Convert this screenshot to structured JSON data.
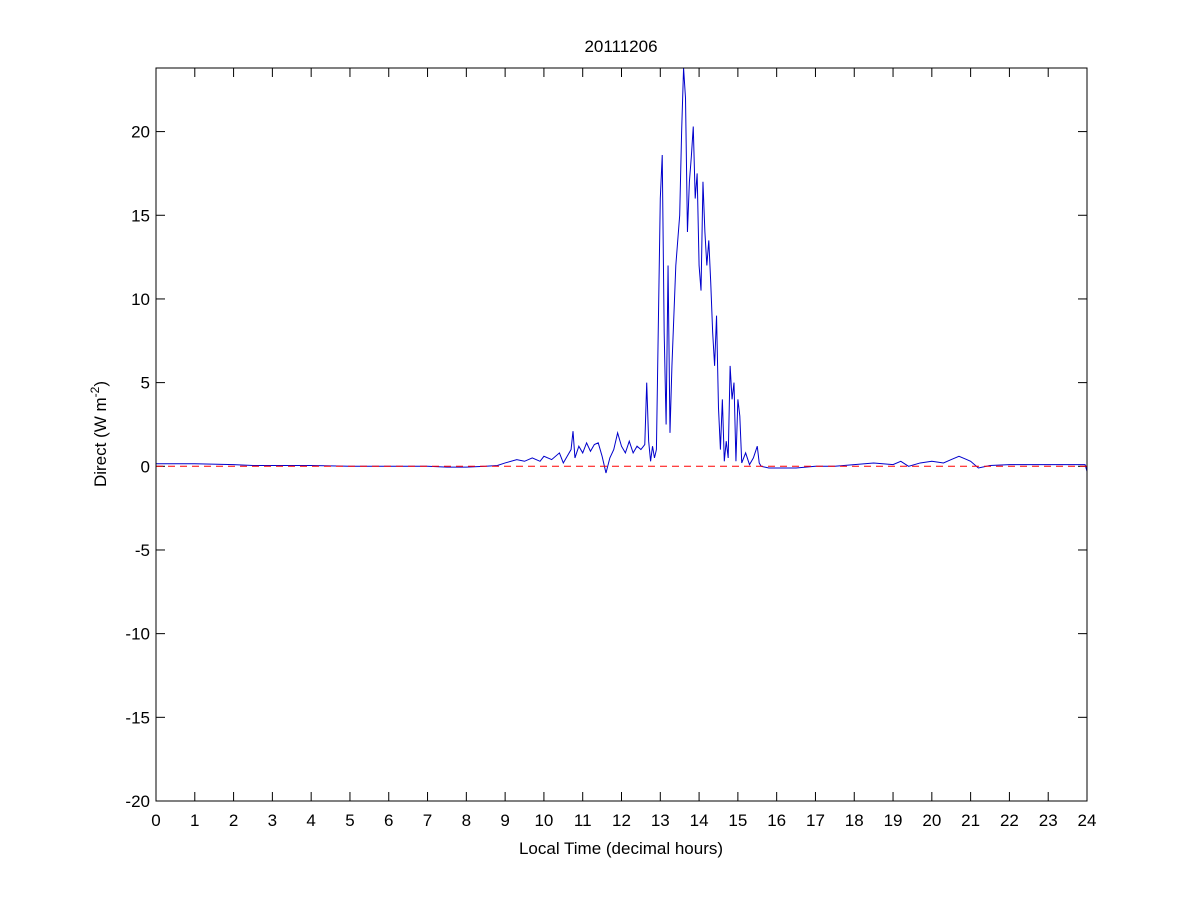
{
  "chart_data": {
    "type": "line",
    "title": "20111206",
    "xlabel": "Local Time (decimal hours)",
    "ylabel": [
      "Direct (W m",
      "-2",
      ")"
    ],
    "xlim": [
      0,
      24
    ],
    "xticks": [
      0,
      1,
      2,
      3,
      4,
      5,
      6,
      7,
      8,
      9,
      10,
      11,
      12,
      13,
      14,
      15,
      16,
      17,
      18,
      19,
      20,
      21,
      22,
      23,
      24
    ],
    "ylim": [
      -20,
      23.8
    ],
    "yticks": [
      -20,
      -15,
      -10,
      -5,
      0,
      5,
      10,
      15,
      20
    ],
    "reference_line": {
      "value": 0,
      "color": "#ff0000",
      "dashed": true
    },
    "series": [
      {
        "color": "#0000cc",
        "x": [
          0,
          1,
          2,
          2.5,
          3,
          4,
          5,
          6,
          7,
          7.5,
          8,
          8.5,
          8.8,
          9,
          9.3,
          9.5,
          9.7,
          9.9,
          10,
          10.2,
          10.4,
          10.5,
          10.6,
          10.7,
          10.75,
          10.8,
          10.9,
          11,
          11.1,
          11.2,
          11.3,
          11.4,
          11.5,
          11.6,
          11.7,
          11.8,
          11.9,
          12,
          12.1,
          12.2,
          12.3,
          12.4,
          12.5,
          12.6,
          12.65,
          12.7,
          12.75,
          12.8,
          12.85,
          12.9,
          13,
          13.05,
          13.1,
          13.15,
          13.2,
          13.25,
          13.3,
          13.4,
          13.5,
          13.55,
          13.6,
          13.65,
          13.7,
          13.75,
          13.8,
          13.85,
          13.9,
          13.95,
          14,
          14.05,
          14.1,
          14.15,
          14.2,
          14.25,
          14.3,
          14.35,
          14.4,
          14.45,
          14.5,
          14.55,
          14.6,
          14.65,
          14.7,
          14.75,
          14.8,
          14.85,
          14.9,
          14.95,
          15,
          15.05,
          15.1,
          15.2,
          15.3,
          15.4,
          15.5,
          15.55,
          15.6,
          15.8,
          16,
          16.5,
          17,
          17.5,
          18,
          18.5,
          19,
          19.2,
          19.4,
          19.7,
          20,
          20.3,
          20.5,
          20.7,
          20.9,
          21,
          21.2,
          21.5,
          22,
          22.5,
          23,
          23.5,
          23.95,
          24
        ],
        "values": [
          0.15,
          0.15,
          0.1,
          0.05,
          0.05,
          0.05,
          0,
          0,
          0,
          -0.05,
          -0.05,
          0,
          0.05,
          0.2,
          0.4,
          0.3,
          0.5,
          0.3,
          0.6,
          0.4,
          0.8,
          0.2,
          0.6,
          1.0,
          2.1,
          0.5,
          1.2,
          0.8,
          1.4,
          0.9,
          1.3,
          1.4,
          0.6,
          -0.4,
          0.5,
          1.0,
          2.0,
          1.2,
          0.8,
          1.5,
          0.8,
          1.2,
          1.0,
          1.3,
          5.0,
          1.5,
          0.3,
          1.2,
          0.5,
          1.0,
          16.0,
          18.6,
          8,
          2.5,
          12,
          2.0,
          6,
          12,
          15,
          20,
          23.8,
          22,
          14,
          17,
          18.5,
          20.3,
          16,
          17.5,
          12,
          10.5,
          17,
          14,
          12,
          13.5,
          11,
          8,
          6,
          9,
          3.5,
          1,
          4,
          0.3,
          1.5,
          0.5,
          6,
          4,
          5,
          0.3,
          4,
          3,
          0.2,
          0.8,
          0.1,
          0.5,
          1.2,
          0.2,
          0,
          -0.1,
          -0.1,
          -0.1,
          0,
          0,
          0.1,
          0.2,
          0.1,
          0.3,
          0,
          0.2,
          0.3,
          0.2,
          0.4,
          0.6,
          0.4,
          0.3,
          -0.1,
          0.05,
          0.1,
          0.1,
          0.1,
          0.1,
          0.1,
          -0.3
        ]
      }
    ]
  }
}
